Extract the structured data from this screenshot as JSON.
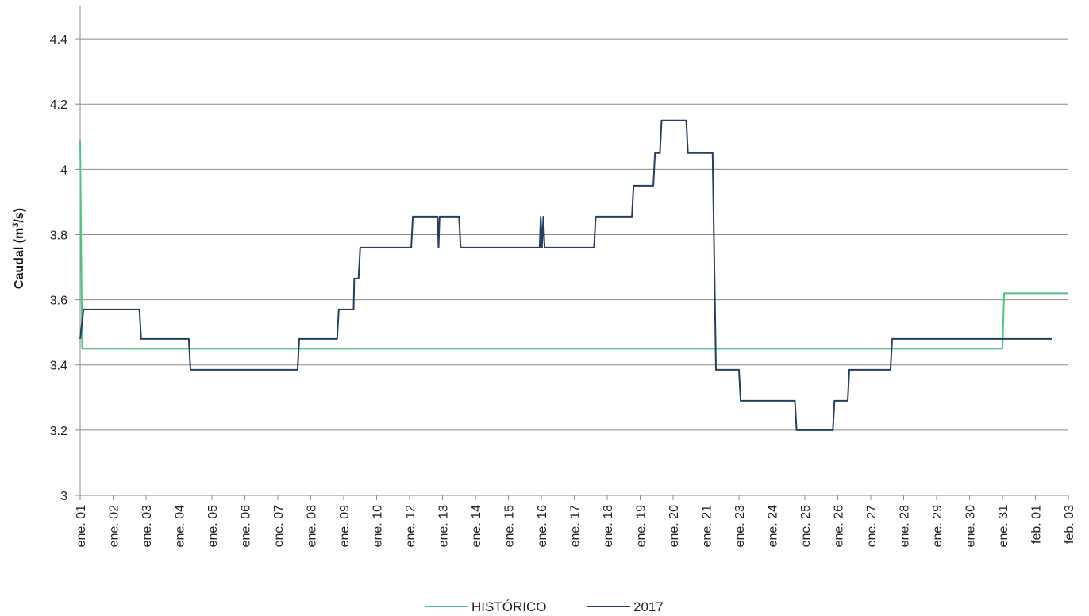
{
  "chart_data": {
    "type": "line",
    "title": "",
    "xlabel": "",
    "ylabel_main": "Caudal (m",
    "ylabel_sup": "3",
    "ylabel_tail": "/s)",
    "ylim": [
      3,
      4.5
    ],
    "yticks": [
      "3",
      "3.2",
      "3.4",
      "3.6",
      "3.8",
      "4",
      "4.2",
      "4.4"
    ],
    "grid": true,
    "legend_position": "bottom",
    "x_tick_labels": [
      "ene. 01",
      "ene. 02",
      "ene. 03",
      "ene. 04",
      "ene. 05",
      "ene. 06",
      "ene. 07",
      "ene. 08",
      "ene. 09",
      "ene. 10",
      "ene. 12",
      "ene. 13",
      "ene. 14",
      "ene. 15",
      "ene. 16",
      "ene. 17",
      "ene. 18",
      "ene. 19",
      "ene. 20",
      "ene. 21",
      "ene. 23",
      "ene. 24",
      "ene. 25",
      "ene. 26",
      "ene. 27",
      "ene. 28",
      "ene. 29",
      "ene. 30",
      "ene. 31",
      "feb. 01",
      "feb. 03"
    ],
    "series": [
      {
        "name": "HISTÓRICO",
        "color": "#4fc486",
        "points": [
          [
            0,
            4.09
          ],
          [
            0.06,
            3.45
          ],
          [
            28.0,
            3.45
          ],
          [
            28.05,
            3.62
          ],
          [
            30.0,
            3.62
          ]
        ]
      },
      {
        "name": "2017",
        "color": "#253f5e",
        "points": [
          [
            0,
            3.48
          ],
          [
            0.1,
            3.57
          ],
          [
            1.8,
            3.57
          ],
          [
            1.85,
            3.48
          ],
          [
            3.3,
            3.48
          ],
          [
            3.35,
            3.385
          ],
          [
            6.6,
            3.385
          ],
          [
            6.65,
            3.48
          ],
          [
            7.8,
            3.48
          ],
          [
            7.85,
            3.57
          ],
          [
            8.3,
            3.57
          ],
          [
            8.32,
            3.665
          ],
          [
            8.45,
            3.665
          ],
          [
            8.5,
            3.76
          ],
          [
            10.05,
            3.76
          ],
          [
            10.1,
            3.855
          ],
          [
            10.85,
            3.855
          ],
          [
            10.88,
            3.76
          ],
          [
            10.91,
            3.855
          ],
          [
            11.5,
            3.855
          ],
          [
            11.55,
            3.76
          ],
          [
            13.95,
            3.76
          ],
          [
            13.98,
            3.855
          ],
          [
            14.02,
            3.76
          ],
          [
            14.06,
            3.855
          ],
          [
            14.1,
            3.76
          ],
          [
            15.6,
            3.76
          ],
          [
            15.65,
            3.855
          ],
          [
            16.75,
            3.855
          ],
          [
            16.8,
            3.95
          ],
          [
            17.4,
            3.95
          ],
          [
            17.45,
            4.05
          ],
          [
            17.6,
            4.05
          ],
          [
            17.65,
            4.15
          ],
          [
            18.4,
            4.15
          ],
          [
            18.45,
            4.05
          ],
          [
            19.2,
            4.05
          ],
          [
            19.3,
            3.385
          ],
          [
            20.0,
            3.385
          ],
          [
            20.05,
            3.29
          ],
          [
            21.7,
            3.29
          ],
          [
            21.75,
            3.2
          ],
          [
            22.85,
            3.2
          ],
          [
            22.9,
            3.29
          ],
          [
            23.3,
            3.29
          ],
          [
            23.35,
            3.385
          ],
          [
            24.6,
            3.385
          ],
          [
            24.65,
            3.48
          ],
          [
            29.5,
            3.48
          ]
        ]
      }
    ]
  }
}
